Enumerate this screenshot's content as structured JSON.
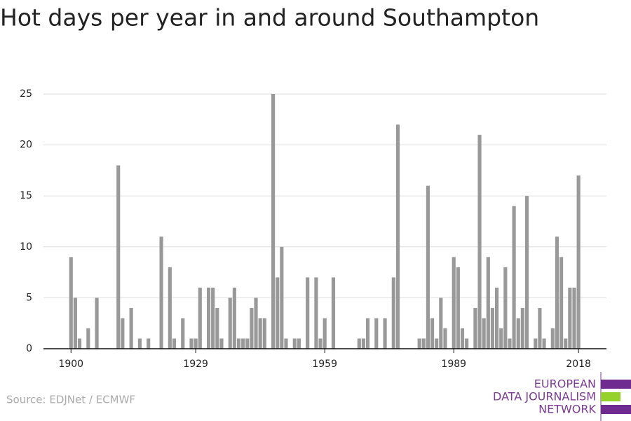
{
  "chart_data": {
    "type": "bar",
    "title": "Hot days per year in and around Southampton",
    "source": "Source: EDJNet / ECMWF",
    "logo": [
      "EUROPEAN",
      "DATA JOURNALISM",
      "NETWORK"
    ],
    "color": "#999999",
    "x": [
      1900,
      1901,
      1902,
      1903,
      1904,
      1905,
      1906,
      1907,
      1908,
      1909,
      1910,
      1911,
      1912,
      1913,
      1914,
      1915,
      1916,
      1917,
      1918,
      1919,
      1920,
      1921,
      1922,
      1923,
      1924,
      1925,
      1926,
      1927,
      1928,
      1929,
      1930,
      1931,
      1932,
      1933,
      1934,
      1935,
      1936,
      1937,
      1938,
      1939,
      1940,
      1941,
      1942,
      1943,
      1944,
      1945,
      1946,
      1947,
      1948,
      1949,
      1950,
      1951,
      1952,
      1953,
      1954,
      1955,
      1956,
      1957,
      1958,
      1959,
      1960,
      1961,
      1962,
      1963,
      1964,
      1965,
      1966,
      1967,
      1968,
      1969,
      1970,
      1971,
      1972,
      1973,
      1974,
      1975,
      1976,
      1977,
      1978,
      1979,
      1980,
      1981,
      1982,
      1983,
      1984,
      1985,
      1986,
      1987,
      1988,
      1989,
      1990,
      1991,
      1992,
      1993,
      1994,
      1995,
      1996,
      1997,
      1998,
      1999,
      2000,
      2001,
      2002,
      2003,
      2004,
      2005,
      2006,
      2007,
      2008,
      2009,
      2010,
      2011,
      2012,
      2013,
      2014,
      2015,
      2016,
      2017,
      2018
    ],
    "values": [
      9,
      5,
      1,
      0,
      2,
      0,
      5,
      0,
      0,
      0,
      0,
      18,
      3,
      0,
      4,
      0,
      1,
      0,
      1,
      0,
      0,
      11,
      0,
      8,
      1,
      0,
      3,
      0,
      1,
      1,
      6,
      0,
      6,
      6,
      4,
      1,
      0,
      5,
      6,
      1,
      1,
      1,
      4,
      5,
      3,
      3,
      0,
      25,
      7,
      10,
      1,
      0,
      1,
      1,
      0,
      7,
      0,
      7,
      1,
      3,
      0,
      7,
      0,
      0,
      0,
      0,
      0,
      1,
      1,
      3,
      0,
      3,
      0,
      3,
      0,
      7,
      22,
      0,
      0,
      0,
      0,
      1,
      1,
      16,
      3,
      1,
      5,
      2,
      0,
      9,
      8,
      2,
      1,
      0,
      4,
      21,
      3,
      9,
      4,
      6,
      2,
      8,
      1,
      14,
      3,
      4,
      15,
      0,
      1,
      4,
      1,
      0,
      2,
      11,
      9,
      1,
      6,
      6,
      17
    ],
    "xlim": [
      1893.6,
      2024.5
    ],
    "xticks": [
      1900,
      1929,
      1959,
      1989,
      2018
    ],
    "ylim": [
      0,
      25
    ],
    "yticks": [
      0,
      5,
      10,
      15,
      20,
      25
    ],
    "grid": true
  }
}
